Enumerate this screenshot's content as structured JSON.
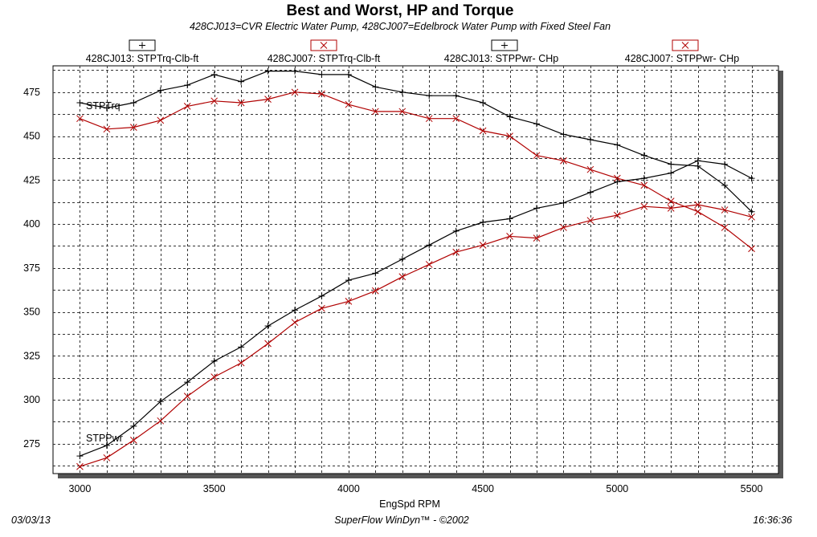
{
  "chart_data": {
    "type": "line",
    "title": "Best and Worst, HP and Torque",
    "subtitle": "428CJ013=CVR Electric Water Pump, 428CJ007=Edelbrock Water Pump with Fixed Steel Fan",
    "xlabel": "EngSpd  RPM",
    "ylabel": "",
    "xlim": [
      2900,
      5600
    ],
    "ylim": [
      258,
      490
    ],
    "x_ticks": [
      "3000",
      "3500",
      "4000",
      "4500",
      "5000",
      "5500"
    ],
    "y_ticks": [
      "275",
      "300",
      "325",
      "350",
      "375",
      "400",
      "425",
      "450",
      "475"
    ],
    "grid": true,
    "legend_position": "top",
    "annotations": {
      "torque": "STPTrq",
      "power": "STPPwr"
    },
    "x": [
      3000,
      3100,
      3200,
      3300,
      3400,
      3500,
      3600,
      3700,
      3800,
      3900,
      4000,
      4100,
      4200,
      4300,
      4400,
      4500,
      4600,
      4700,
      4800,
      4900,
      5000,
      5100,
      5200,
      5300,
      5400,
      5500
    ],
    "series": [
      {
        "name": "428CJ013: STPTrq-Clb-ft",
        "color": "#000000",
        "marker": "plus",
        "values": [
          469,
          466,
          469,
          476,
          479,
          485,
          481,
          487,
          487,
          485,
          485,
          478,
          475,
          473,
          473,
          469,
          461,
          457,
          451,
          448,
          445,
          439,
          434,
          433,
          422,
          407
        ]
      },
      {
        "name": "428CJ007: STPTrq-Clb-ft",
        "color": "#b00000",
        "marker": "x",
        "values": [
          460,
          454,
          455,
          459,
          467,
          470,
          469,
          471,
          475,
          474,
          468,
          464,
          464,
          460,
          460,
          453,
          450,
          439,
          436,
          431,
          426,
          422,
          413,
          407,
          398,
          386
        ]
      },
      {
        "name": "428CJ013: STPPwr- CHp",
        "color": "#000000",
        "marker": "plus",
        "values": [
          268,
          274,
          285,
          299,
          310,
          322,
          330,
          342,
          351,
          359,
          368,
          372,
          380,
          388,
          396,
          401,
          403,
          409,
          412,
          418,
          424,
          426,
          429,
          436,
          434,
          426
        ]
      },
      {
        "name": "428CJ007: STPPwr- CHp",
        "color": "#b00000",
        "marker": "x",
        "values": [
          262,
          267,
          277,
          288,
          302,
          313,
          321,
          332,
          344,
          352,
          356,
          362,
          370,
          377,
          384,
          388,
          393,
          392,
          398,
          402,
          405,
          410,
          409,
          411,
          408,
          404
        ]
      }
    ]
  },
  "footer": {
    "date": "03/03/13",
    "software": "SuperFlow WinDyn™ - ©2002",
    "time": "16:36:36"
  }
}
